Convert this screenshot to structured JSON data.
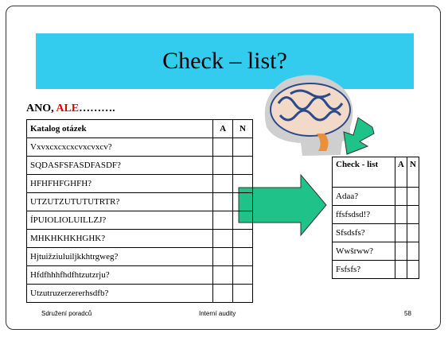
{
  "title": "Check – list?",
  "intro": {
    "lead": "ANO,",
    "highlight": "ALE",
    "trail": "………."
  },
  "left_table": {
    "header": [
      "Katalog otázek",
      "A",
      "N"
    ],
    "rows": [
      "Vxvxcxcxcxcvxcvxcv?",
      "SQDASFSFASDFASDF?",
      "HFHFHFGHFH?",
      "UTZUTZUTUTUTRTR?",
      "ÍPUIOLIOLUILLZJ?",
      "MHKHKHKHGHK?",
      "Hjtuižziuluiljkkhtrgweg?",
      "Hfdfhhhfhdfhtzutzrju?",
      "Utzutruzerzererhsdfb?"
    ]
  },
  "right_table": {
    "header": [
      "Check - list",
      "A",
      "N"
    ],
    "rows": [
      "Adaa?",
      "ffsfsdsd!?",
      "Sfsdsfs?",
      "Wwšrww?",
      "Fsfsfs?"
    ]
  },
  "footer": {
    "left": "Sdružení poradců",
    "center": "Interní audity",
    "page": "58"
  }
}
